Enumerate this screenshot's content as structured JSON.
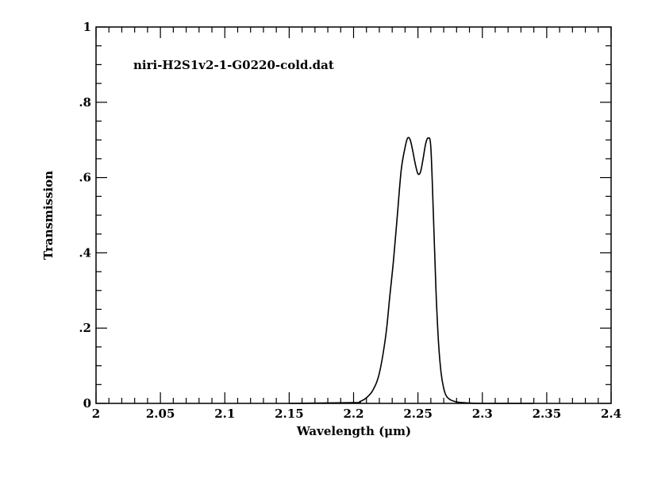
{
  "chart_data": {
    "type": "line",
    "annotation": "niri-H2S1v2-1-G0220-cold.dat",
    "xlabel": "Wavelength (μm)",
    "ylabel": "Transmission",
    "xlim": [
      2.0,
      2.4
    ],
    "ylim": [
      0,
      1
    ],
    "x_ticks": [
      2,
      2.05,
      2.1,
      2.15,
      2.2,
      2.25,
      2.3,
      2.35,
      2.4
    ],
    "x_tick_labels": [
      "2",
      "2.05",
      "2.1",
      "2.15",
      "2.2",
      "2.25",
      "2.3",
      "2.35",
      "2.4"
    ],
    "y_ticks": [
      0,
      0.2,
      0.4,
      0.6,
      0.8,
      1
    ],
    "y_tick_labels": [
      "0",
      ".2",
      ".4",
      ".6",
      ".8",
      "1"
    ],
    "grid": false,
    "series": [
      {
        "x": [
          2.15,
          2.2,
          2.205,
          2.21,
          2.215,
          2.22,
          2.225,
          2.228,
          2.231,
          2.234,
          2.237,
          2.24,
          2.242,
          2.244,
          2.246,
          2.248,
          2.25,
          2.252,
          2.254,
          2.256,
          2.258,
          2.26,
          2.262,
          2.264,
          2.266,
          2.268,
          2.27,
          2.272,
          2.275,
          2.28,
          2.285,
          2.29,
          2.3,
          2.34
        ],
        "y": [
          0.0,
          0.002,
          0.005,
          0.015,
          0.035,
          0.08,
          0.18,
          0.28,
          0.38,
          0.5,
          0.62,
          0.68,
          0.705,
          0.7,
          0.67,
          0.635,
          0.61,
          0.615,
          0.65,
          0.69,
          0.705,
          0.68,
          0.5,
          0.3,
          0.16,
          0.08,
          0.04,
          0.02,
          0.01,
          0.004,
          0.002,
          0.001,
          0.0,
          0.0
        ]
      }
    ]
  }
}
